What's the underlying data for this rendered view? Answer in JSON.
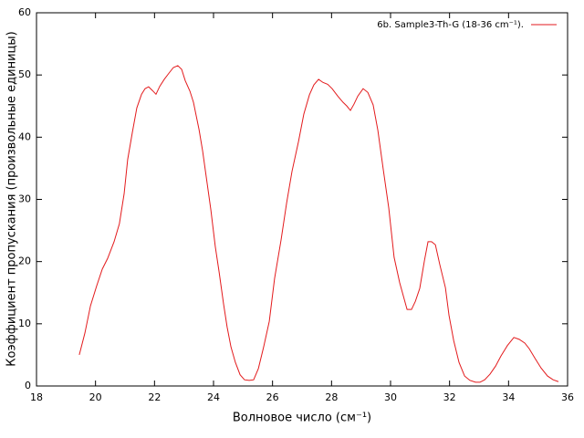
{
  "chart_data": {
    "type": "line",
    "xlabel": "Волновое число (см⁻¹)",
    "ylabel": "Коэффициент пропускания (произвольные единицы)",
    "x": [
      19.45,
      19.64,
      19.83,
      20.04,
      20.23,
      20.41,
      20.63,
      20.81,
      20.97,
      21.09,
      21.25,
      21.4,
      21.56,
      21.68,
      21.8,
      21.93,
      22.05,
      22.18,
      22.33,
      22.49,
      22.64,
      22.79,
      22.92,
      23.04,
      23.2,
      23.32,
      23.51,
      23.63,
      23.78,
      23.91,
      24.06,
      24.19,
      24.34,
      24.46,
      24.59,
      24.74,
      24.9,
      25.05,
      25.21,
      25.36,
      25.52,
      25.7,
      25.89,
      26.07,
      26.29,
      26.48,
      26.66,
      26.88,
      27.06,
      27.25,
      27.4,
      27.56,
      27.71,
      27.87,
      28.02,
      28.21,
      28.39,
      28.52,
      28.64,
      28.76,
      28.89,
      29.07,
      29.23,
      29.41,
      29.57,
      29.75,
      29.94,
      30.12,
      30.31,
      30.56,
      30.71,
      30.84,
      30.99,
      31.15,
      31.27,
      31.39,
      31.52,
      31.67,
      31.86,
      31.98,
      32.14,
      32.32,
      32.51,
      32.69,
      32.88,
      33.03,
      33.19,
      33.37,
      33.56,
      33.74,
      33.96,
      34.18,
      34.36,
      34.55,
      34.7,
      34.89,
      35.1,
      35.32,
      35.51,
      35.69
    ],
    "series": [
      {
        "name": "6b. Sample3-Th-G (18-36 cm⁻¹).",
        "color": "#e31a1c",
        "values": [
          5.0,
          8.5,
          12.9,
          16.1,
          18.8,
          20.5,
          23.2,
          26.1,
          30.9,
          36.4,
          40.8,
          44.7,
          46.9,
          47.8,
          48.1,
          47.5,
          46.9,
          48.2,
          49.3,
          50.3,
          51.2,
          51.5,
          50.9,
          49.1,
          47.4,
          45.6,
          41.2,
          37.8,
          32.7,
          28.3,
          22.4,
          18.3,
          13.2,
          9.5,
          6.3,
          3.8,
          1.8,
          1.0,
          0.9,
          1.0,
          2.8,
          6.3,
          10.4,
          17.3,
          23.5,
          29.5,
          34.5,
          39.3,
          43.7,
          46.8,
          48.4,
          49.3,
          48.8,
          48.5,
          47.8,
          46.6,
          45.6,
          45.0,
          44.3,
          45.3,
          46.6,
          47.8,
          47.2,
          45.2,
          41.1,
          34.9,
          28.6,
          20.7,
          16.6,
          12.3,
          12.3,
          13.6,
          15.7,
          20.2,
          23.2,
          23.2,
          22.7,
          19.5,
          15.8,
          11.4,
          7.3,
          3.8,
          1.6,
          0.9,
          0.6,
          0.6,
          1.0,
          1.9,
          3.2,
          4.8,
          6.5,
          7.8,
          7.5,
          6.9,
          6.0,
          4.5,
          2.9,
          1.6,
          1.0,
          0.7
        ]
      }
    ],
    "xlim": [
      18,
      36
    ],
    "xticks": [
      18,
      20,
      22,
      24,
      26,
      28,
      30,
      32,
      34,
      36
    ],
    "ylim": [
      0,
      60
    ],
    "yticks": [
      0,
      10,
      20,
      30,
      40,
      50,
      60
    ],
    "grid": false,
    "legend": "top right"
  }
}
